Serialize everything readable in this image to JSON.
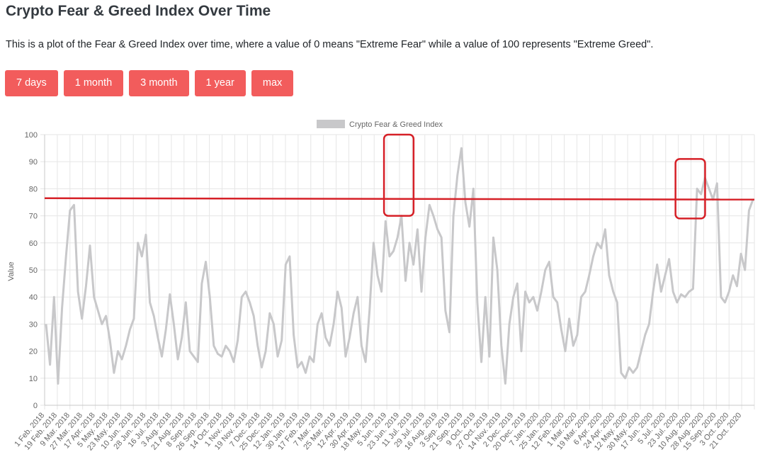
{
  "header": {
    "title": "Crypto Fear & Greed Index Over Time",
    "description": "This is a plot of the Fear & Greed Index over time, where a value of 0 means \"Extreme Fear\" while a value of 100 represents \"Extreme Greed\"."
  },
  "range_buttons": [
    {
      "label": "7 days"
    },
    {
      "label": "1 month"
    },
    {
      "label": "3 month"
    },
    {
      "label": "1 year"
    },
    {
      "label": "max"
    }
  ],
  "colors": {
    "button_bg": "#f25c5c",
    "series_line": "#c8c8ca",
    "annotation": "#d62027",
    "grid": "#e6e6e6"
  },
  "chart_data": {
    "type": "line",
    "title": "",
    "xlabel": "",
    "ylabel": "Value",
    "legend": {
      "position": "top",
      "labels": [
        "Crypto Fear & Greed Index"
      ]
    },
    "ylim": [
      0,
      100
    ],
    "yticks": [
      0,
      10,
      20,
      30,
      40,
      50,
      60,
      70,
      80,
      90,
      100
    ],
    "grid": true,
    "x_tick_labels": [
      "1 Feb. 2018",
      "19 Feb. 2018",
      "9 Mar. 2018",
      "27 Mar. 2018",
      "17 Apr. 2018",
      "5 May. 2018",
      "23 May. 2018",
      "10 Jun. 2018",
      "28 Jun. 2018",
      "16 Jul. 2018",
      "3 Aug. 2018",
      "21 Aug. 2018",
      "8 Sep. 2018",
      "26 Sep. 2018",
      "14 Oct. 2018",
      "1 Nov. 2018",
      "19 Nov. 2018",
      "7 Dec. 2018",
      "25 Dec. 2018",
      "12 Jan. 2019",
      "30 Jan. 2019",
      "17 Feb. 2019",
      "7 Mar. 2019",
      "25 Mar. 2019",
      "12 Apr. 2019",
      "30 Apr. 2019",
      "18 May. 2019",
      "5 Jun. 2019",
      "23 Jun. 2019",
      "11 Jul. 2019",
      "29 Jul. 2019",
      "16 Aug. 2019",
      "3 Sep. 2019",
      "21 Sep. 2019",
      "9 Oct. 2019",
      "27 Oct. 2019",
      "14 Nov. 2019",
      "2 Dec. 2019",
      "20 Dec. 2019",
      "7 Jan. 2020",
      "25 Jan. 2020",
      "12 Feb. 2020",
      "1 Mar. 2020",
      "19 Mar. 2020",
      "6 Apr. 2020",
      "24 Apr. 2020",
      "12 May. 2020",
      "30 May. 2020",
      "17 Jun. 2020",
      "5 Jul. 2020",
      "23 Jul. 2020",
      "10 Aug. 2020",
      "28 Aug. 2020",
      "15 Sep. 2020",
      "3 Oct. 2020",
      "21 Oct. 2020"
    ],
    "series": [
      {
        "name": "Crypto Fear & Greed Index",
        "values": [
          30,
          15,
          40,
          8,
          36,
          55,
          72,
          74,
          42,
          32,
          44,
          59,
          40,
          35,
          30,
          33,
          24,
          12,
          20,
          17,
          22,
          28,
          32,
          60,
          55,
          63,
          38,
          33,
          25,
          18,
          28,
          41,
          30,
          17,
          25,
          38,
          20,
          18,
          16,
          45,
          53,
          40,
          22,
          19,
          18,
          22,
          20,
          16,
          24,
          40,
          42,
          38,
          33,
          22,
          14,
          20,
          34,
          30,
          18,
          24,
          52,
          55,
          26,
          14,
          16,
          12,
          18,
          16,
          30,
          34,
          25,
          22,
          30,
          42,
          36,
          18,
          25,
          34,
          40,
          22,
          16,
          35,
          60,
          48,
          42,
          68,
          55,
          57,
          62,
          70,
          46,
          60,
          52,
          65,
          42,
          62,
          74,
          70,
          65,
          62,
          35,
          27,
          70,
          85,
          95,
          75,
          66,
          80,
          38,
          16,
          40,
          18,
          62,
          50,
          22,
          8,
          30,
          40,
          45,
          20,
          42,
          38,
          40,
          35,
          42,
          50,
          53,
          40,
          38,
          28,
          20,
          32,
          22,
          26,
          40,
          42,
          48,
          55,
          60,
          58,
          65,
          48,
          42,
          38,
          12,
          10,
          14,
          12,
          14,
          20,
          26,
          30,
          42,
          52,
          42,
          48,
          54,
          42,
          38,
          41,
          40,
          42,
          43,
          80,
          78,
          84,
          80,
          76,
          82,
          40,
          38,
          42,
          48,
          44,
          56,
          50,
          72,
          76
        ],
        "note": "approximate daily index levels read from the plotted line, in chronological order from 1 Feb. 2018 to late Oct. 2020"
      },
      {
        "name": "",
        "values": [
          76.5,
          76
        ],
        "note": "red horizontal reference line across the full range"
      }
    ],
    "annotations": [
      {
        "type": "box",
        "x_range": [
          "5 Jun. 2019",
          "11 Jul. 2019"
        ],
        "y_range": [
          70,
          100
        ]
      },
      {
        "type": "box",
        "x_range": [
          "23 Jul. 2020",
          "28 Aug. 2020"
        ],
        "y_range": [
          69,
          91
        ]
      }
    ]
  }
}
